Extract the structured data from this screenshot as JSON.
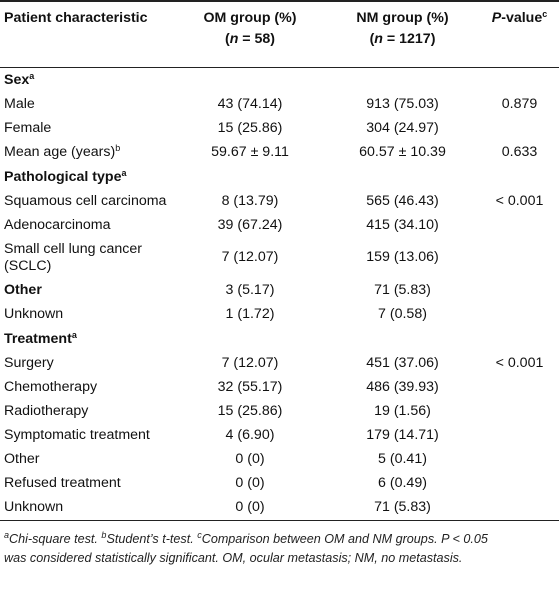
{
  "header": {
    "col1": "Patient characteristic",
    "col2_line1": "OM group (%)",
    "col2_line2_prefix": "(",
    "col2_n": "n",
    "col2_line2_suffix": " = 58)",
    "col3_line1": "NM group (%)",
    "col3_line2_prefix": "(",
    "col3_n": "n",
    "col3_line2_suffix": " = 1217)",
    "col4_p": "P",
    "col4_rest": "-value",
    "col4_sup": "c"
  },
  "sections": {
    "sex": {
      "label": "Sex",
      "sup": "a"
    },
    "pathological": {
      "label": "Pathological type",
      "sup": "a"
    },
    "other": {
      "label": "Other"
    },
    "treatment": {
      "label": "Treatment",
      "sup": "a"
    }
  },
  "rows": {
    "male": {
      "label": "Male",
      "om": "43 (74.14)",
      "nm": "913 (75.03)",
      "p": "0.879"
    },
    "female": {
      "label": "Female",
      "om": "15 (25.86)",
      "nm": "304 (24.97)",
      "p": ""
    },
    "mean_age": {
      "label": "Mean age (years)",
      "sup": "b",
      "om": "59.67 ± 9.11",
      "nm": "60.57 ± 10.39",
      "p": "0.633"
    },
    "squamous": {
      "label": "Squamous cell carcinoma",
      "om": "8 (13.79)",
      "nm": "565 (46.43)",
      "p": "< 0.001"
    },
    "adeno": {
      "label": "Adenocarcinoma",
      "om": "39 (67.24)",
      "nm": "415 (34.10)",
      "p": ""
    },
    "sclc": {
      "label_line1": "Small cell lung cancer",
      "label_line2": "(SCLC)",
      "om": "7 (12.07)",
      "nm": "159 (13.06)",
      "p": ""
    },
    "other_path": {
      "om": "3 (5.17)",
      "nm": "71 (5.83)",
      "p": ""
    },
    "unknown_path": {
      "label": "Unknown",
      "om": "1 (1.72)",
      "nm": "7 (0.58)",
      "p": ""
    },
    "surgery": {
      "label": "Surgery",
      "om": "7 (12.07)",
      "nm": "451 (37.06)",
      "p": "< 0.001"
    },
    "chemo": {
      "label": "Chemotherapy",
      "om": "32 (55.17)",
      "nm": "486 (39.93)",
      "p": ""
    },
    "radio": {
      "label": "Radiotherapy",
      "om": "15 (25.86)",
      "nm": "19 (1.56)",
      "p": ""
    },
    "symptomatic": {
      "label": "Symptomatic treatment",
      "om": "4 (6.90)",
      "nm": "179 (14.71)",
      "p": ""
    },
    "other_treat": {
      "label": "Other",
      "om": "0 (0)",
      "nm": "5 (0.41)",
      "p": ""
    },
    "refused": {
      "label": "Refused treatment",
      "om": "0 (0)",
      "nm": "6 (0.49)",
      "p": ""
    },
    "unknown_treat": {
      "label": "Unknown",
      "om": "0 (0)",
      "nm": "71 (5.83)",
      "p": ""
    }
  },
  "footnote": {
    "sup_a": "a",
    "text_a": "Chi-square test. ",
    "sup_b": "b",
    "text_b": "Student’s t-test. ",
    "sup_c": "c",
    "text_c": "Comparison between OM and NM groups. P < 0.05",
    "line2": "was considered statistically significant. OM, ocular metastasis; NM, no metastasis."
  }
}
